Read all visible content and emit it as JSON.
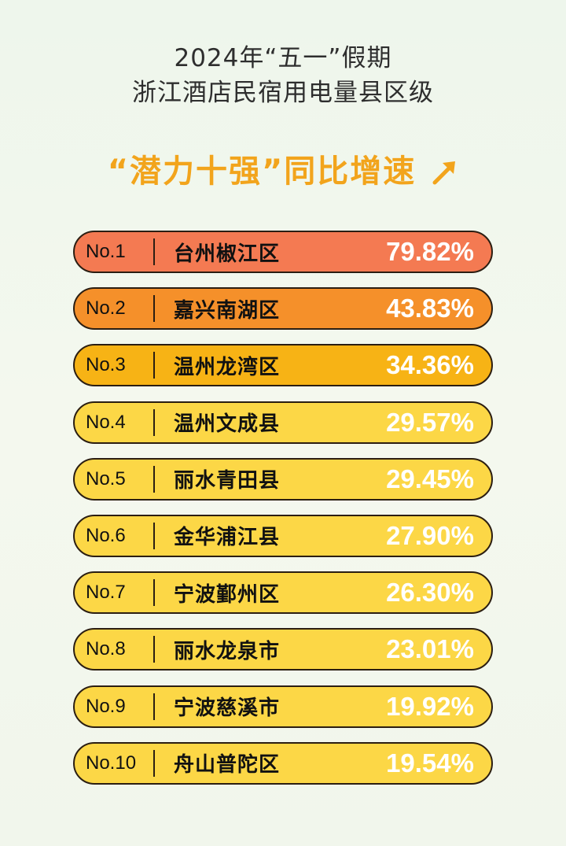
{
  "header": {
    "title_line1": "2024年“五一”假期",
    "title_line2": "浙江酒店民宿用电量县区级",
    "subtitle": "“潜力十强”同比增速"
  },
  "colors": {
    "top1": "#f47a52",
    "top2": "#f5902a",
    "top3": "#f7b315",
    "rest": "#fcd746",
    "subtitle": "#f2a41c"
  },
  "chart_data": {
    "type": "table",
    "ranks": [
      "No.1",
      "No.2",
      "No.3",
      "No.4",
      "No.5",
      "No.6",
      "No.7",
      "No.8",
      "No.9",
      "No.10"
    ],
    "categories": [
      "台州椒江区",
      "嘉兴南湖区",
      "温州龙湾区",
      "温州文成县",
      "丽水青田县",
      "金华浦江县",
      "宁波鄞州区",
      "丽水龙泉市",
      "宁波慈溪市",
      "舟山普陀区"
    ],
    "values": [
      79.82,
      43.83,
      34.36,
      29.57,
      29.45,
      27.9,
      26.3,
      23.01,
      19.92,
      19.54
    ],
    "value_labels": [
      "79.82%",
      "43.83%",
      "34.36%",
      "29.57%",
      "29.45%",
      "27.90%",
      "26.30%",
      "23.01%",
      "19.92%",
      "19.54%"
    ],
    "title": "2024年“五一”假期 浙江酒店民宿用电量县区级",
    "subtitle": "“潜力十强”同比增速"
  }
}
